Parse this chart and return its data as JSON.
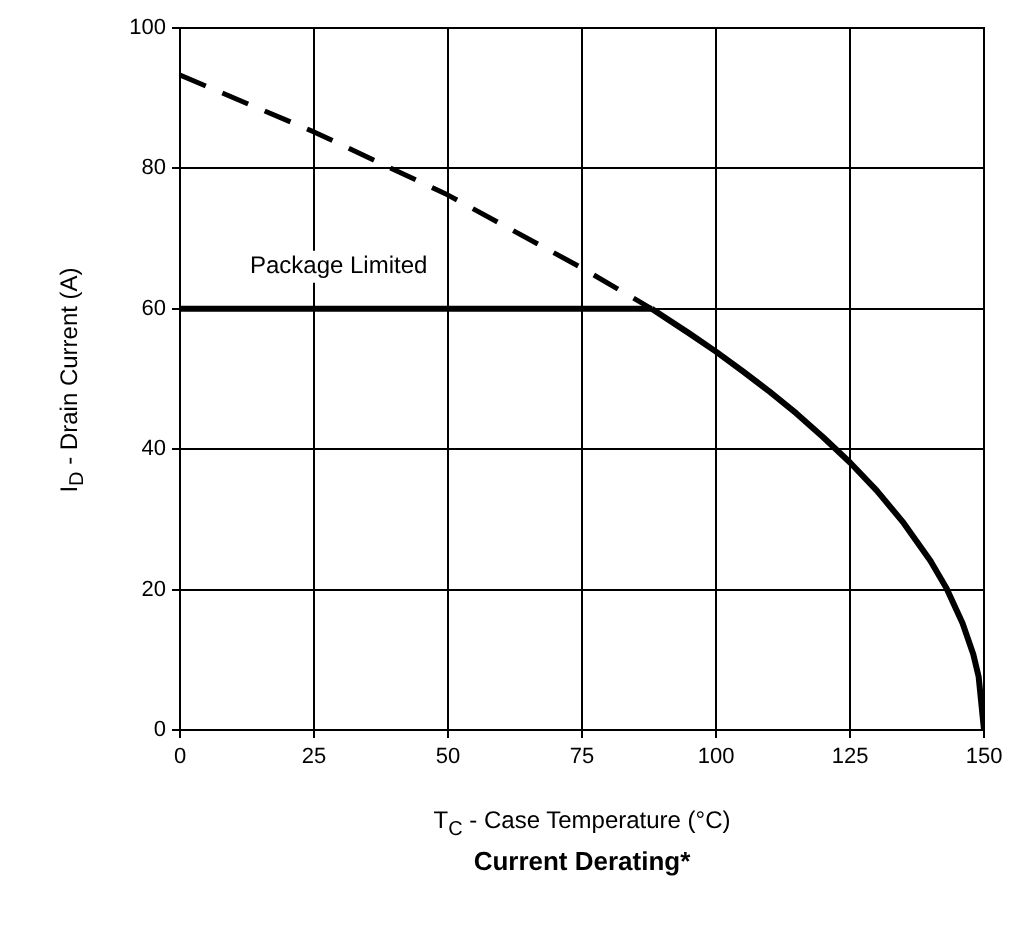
{
  "chart_data": {
    "type": "line",
    "title": "Current Derating*",
    "xlabel": "T$_{C}$ - Case Temperature (°C)",
    "ylabel": "I$_{D}$ - Drain Current (A)",
    "xlim": [
      0,
      150
    ],
    "xticks": [
      0,
      25,
      50,
      75,
      100,
      125,
      150
    ],
    "ylim": [
      0,
      100
    ],
    "yticks": [
      0,
      20,
      40,
      60,
      80,
      100
    ],
    "grid": true,
    "marker": "none",
    "series": [
      {
        "color": "#000000",
        "line_style": "dashed",
        "x": [
          0,
          25,
          50,
          75,
          88
        ],
        "values": [
          93.3,
          85.2,
          76.2,
          65.8,
          60
        ]
      },
      {
        "color": "#000000",
        "line_style": "solid",
        "x": [
          0,
          88
        ],
        "values": [
          60,
          60
        ]
      },
      {
        "color": "#000000",
        "line_style": "solid",
        "x": [
          88,
          95,
          100,
          105,
          110,
          115,
          120,
          125,
          130,
          135,
          140,
          143,
          146,
          148,
          149,
          150
        ],
        "values": [
          60,
          56.5,
          53.9,
          51.1,
          48.2,
          45.1,
          41.7,
          38.1,
          34.1,
          29.5,
          24.1,
          20.2,
          15.2,
          10.8,
          7.6,
          0
        ]
      }
    ],
    "annotations": [
      "Package Limited"
    ]
  }
}
